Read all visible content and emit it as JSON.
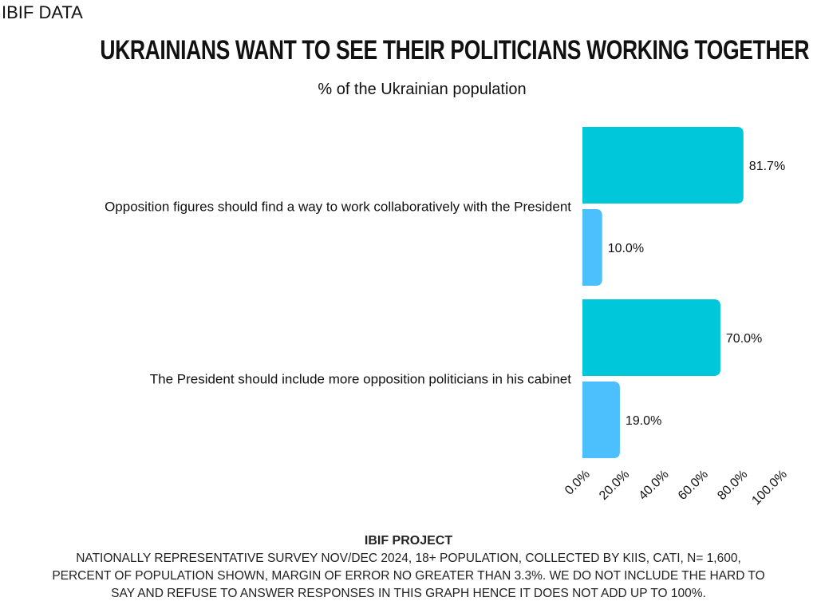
{
  "brand": "IBIF DATA",
  "chart_data": {
    "type": "bar",
    "orientation": "horizontal",
    "title": "UKRAINIANS WANT TO SEE THEIR POLITICIANS WORKING TOGETHER",
    "subtitle": "% of the Ukrainian population",
    "categories": [
      "Opposition figures should find a way to work collaboratively with the President",
      "The President should include more opposition politicians in his cabinet"
    ],
    "series": [
      {
        "values": [
          81.7,
          70.0
        ],
        "labels": [
          "81.7%",
          "70.0%"
        ],
        "color": "#00c8da"
      },
      {
        "values": [
          10.0,
          19.0
        ],
        "labels": [
          "10.0%",
          "19.0%"
        ],
        "color": "#4cc0fc"
      }
    ],
    "xlim": [
      0,
      100
    ],
    "xticks": [
      "0.0%",
      "20.0%",
      "40.0%",
      "60.0%",
      "80.0%",
      "100.0%"
    ],
    "grid": false,
    "legend": "none"
  },
  "footer": {
    "heading": "IBIF PROJECT",
    "lines": [
      "NATIONALLY REPRESENTATIVE SURVEY NOV/DEC 2024, 18+ POPULATION, COLLECTED BY KIIS, CATI, N= 1,600,",
      "PERCENT OF POPULATION SHOWN, MARGIN OF ERROR NO GREATER THAN 3.3%. WE DO NOT INCLUDE THE HARD TO",
      "SAY AND REFUSE TO ANSWER RESPONSES IN THIS GRAPH HENCE IT DOES NOT ADD UP TO 100%."
    ]
  }
}
